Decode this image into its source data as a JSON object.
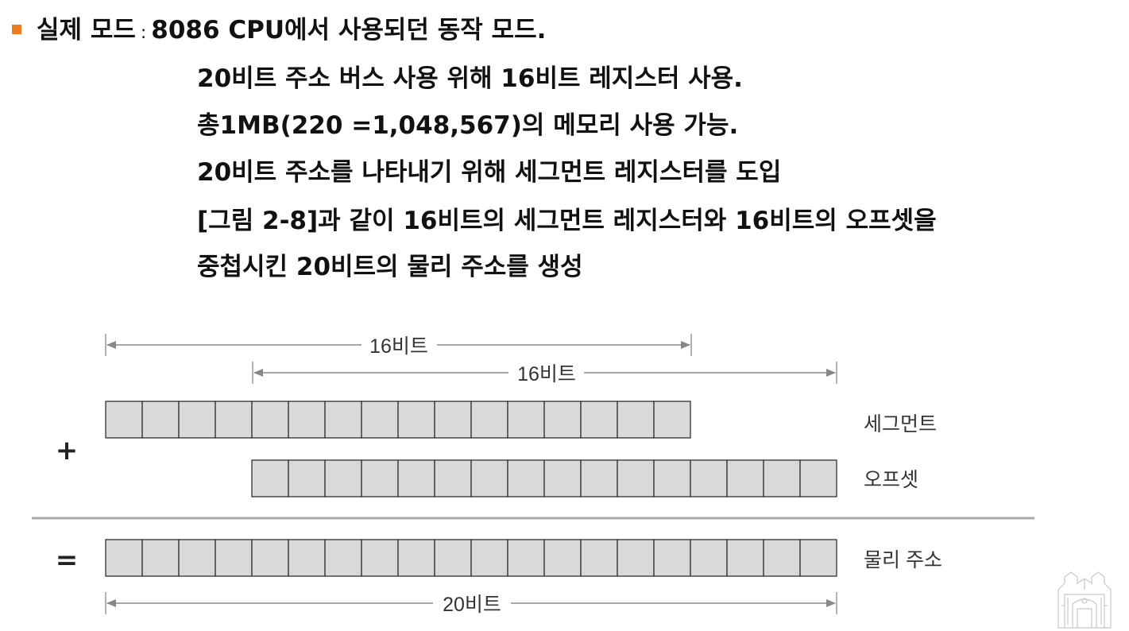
{
  "text": {
    "line0_label": "실제 모드",
    "line0_colon": ":",
    "line0_rest": "8086 CPU에서 사용되던 동작 모드.",
    "line1": "20비트 주소 버스 사용 위해 16비트 레지스터 사용.",
    "line2": "총1MB(220 =1,048,567)의 메모리 사용 가능.",
    "line3": "20비트 주소를 나타내기 위해 세그먼트 레지스터를 도입",
    "line4": "[그림 2-8]과 같이 16비트의 세그먼트 레지스터와 16비트의 오프셋을",
    "line5": "중첩시킨 20비트의 물리 주소를 생성"
  },
  "diagram": {
    "top_span_label": "16비트",
    "second_span_label": "16비트",
    "bottom_span_label": "20비트",
    "plus_sign": "+",
    "equals_sign": "=",
    "segment_label": "세그먼트",
    "offset_label": "오프셋",
    "physical_label": "물리 주소",
    "segment_bits": 16,
    "offset_bits": 16,
    "physical_bits": 20,
    "cell_color": "#d9d9d9",
    "line_color": "#999999"
  },
  "colors": {
    "bullet": "#ee7d1f",
    "text": "#111111"
  },
  "logo": {
    "icon": "university-building-logo"
  }
}
